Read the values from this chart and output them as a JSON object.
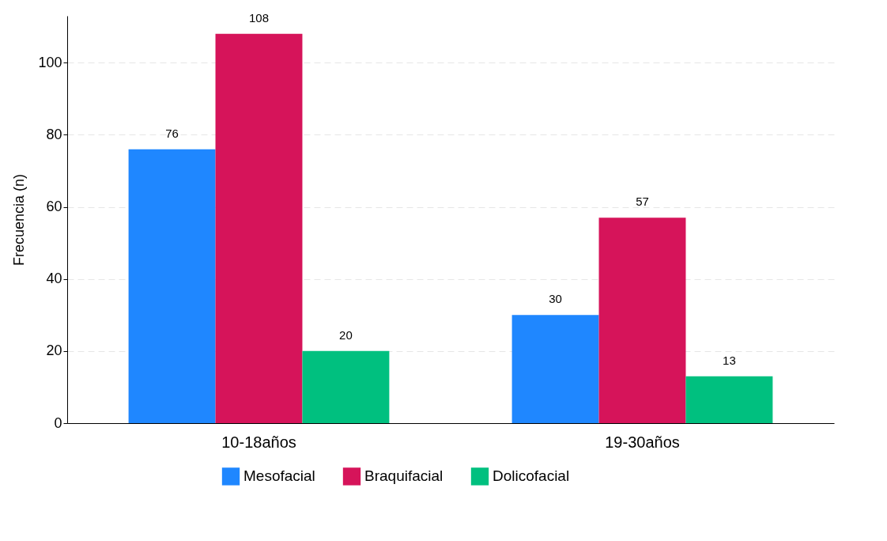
{
  "chart_data": {
    "type": "bar",
    "ylabel": "Frecuencia (n)",
    "categories": [
      "10-18años",
      "19-30años"
    ],
    "series": [
      {
        "name": "Mesofacial",
        "color": "#1f87ff",
        "values": [
          76,
          30
        ]
      },
      {
        "name": "Braquifacial",
        "color": "#d6145a",
        "values": [
          108,
          57
        ]
      },
      {
        "name": "Dolicofacial",
        "color": "#00c07f",
        "values": [
          20,
          13
        ]
      }
    ],
    "ylim": [
      0,
      113
    ],
    "yticks": [
      0,
      20,
      40,
      60,
      80,
      100
    ],
    "grid": "y",
    "legend": "bottom",
    "data_labels": true
  }
}
